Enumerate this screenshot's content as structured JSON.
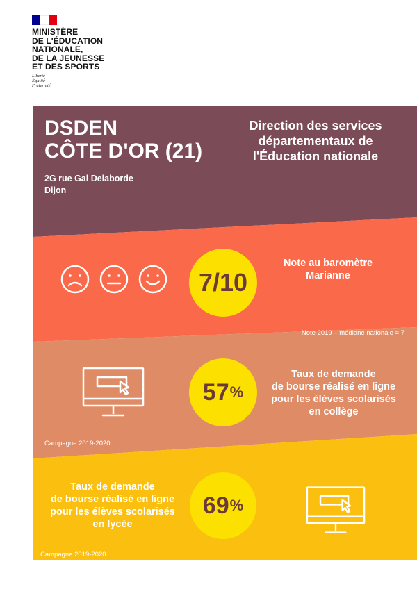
{
  "header": {
    "ministry_lines": [
      "MINISTÈRE",
      "DE L'ÉDUCATION",
      "NATIONALE,",
      "DE LA JEUNESSE",
      "ET DES SPORTS"
    ],
    "motto_lines": [
      "Liberté",
      "Égalité",
      "Fraternité"
    ],
    "flag_colors": [
      "#000091",
      "#ffffff",
      "#e1000f"
    ]
  },
  "title_band": {
    "name_line1": "DSDEN",
    "name_line2": "CÔTE D'OR (21)",
    "address_line1": "2G rue Gal Delaborde",
    "address_line2": "Dijon",
    "direction_lines": [
      "Direction des services",
      "départementaux de",
      "l'Éducation nationale"
    ],
    "color": "#7b4b57"
  },
  "barometer": {
    "score": "7/10",
    "label_lines": [
      "Note au baromètre",
      "Marianne"
    ],
    "note": "Note 2019 – médiane nationale = 7",
    "color": "#f9694a",
    "icons": [
      "sad-face-icon",
      "neutral-face-icon",
      "happy-face-icon"
    ]
  },
  "college": {
    "value": "57",
    "unit": "%",
    "label_lines": [
      "Taux de demande",
      "de bourse réalisé en ligne",
      "pour les élèves scolarisés",
      "en collège"
    ],
    "campaign": "Campagne 2019-2020",
    "color": "#df8b66",
    "icon": "computer-monitor-icon"
  },
  "lycee": {
    "value": "69",
    "unit": "%",
    "label_lines": [
      "Taux de demande",
      "de bourse réalisé en ligne",
      "pour les élèves scolarisés",
      "en lycée"
    ],
    "campaign": "Campagne 2019-2020",
    "color": "#fbbf0f",
    "icon": "computer-monitor-icon"
  },
  "accent": {
    "circle": "#fbe000",
    "circle_text": "#6b3b3b"
  }
}
